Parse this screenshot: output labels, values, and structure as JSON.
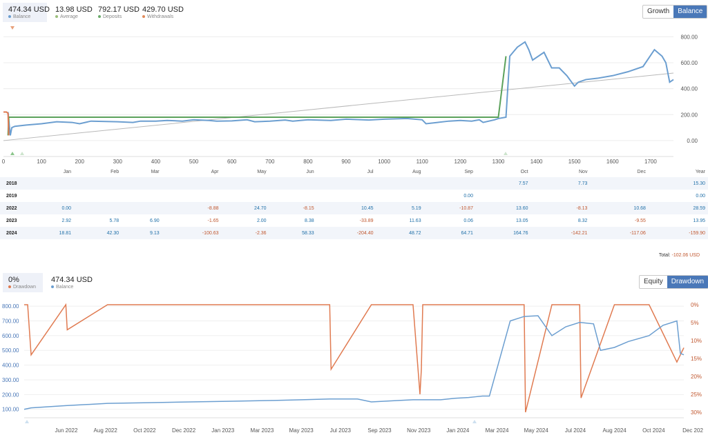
{
  "top_stats": [
    {
      "value": "474.34 USD",
      "label": "Balance",
      "color": "#6b9ed0"
    },
    {
      "value": "13.98 USD",
      "label": "Average",
      "color": "#9bbf7a"
    },
    {
      "value": "792.17 USD",
      "label": "Deposits",
      "color": "#6aaa6a"
    },
    {
      "value": "429.70 USD",
      "label": "Withdrawals",
      "color": "#e08a5a"
    }
  ],
  "top_toggle": {
    "growth": "Growth",
    "balance": "Balance"
  },
  "colors": {
    "balance": "#6b9ed0",
    "deposit": "#5aa15a",
    "withdrawal": "#e07a50",
    "trend": "#b8b8b8",
    "drawdown": "#e07a50",
    "accent": "#4a78b8"
  },
  "chart_data": [
    {
      "type": "line",
      "x_ticks": [
        "0",
        "100",
        "200",
        "300",
        "400",
        "500",
        "600",
        "700",
        "800",
        "900",
        "1000",
        "1100",
        "1200",
        "1300",
        "1400",
        "1500",
        "1600",
        "1700"
      ],
      "y_ticks": [
        "800.00",
        "600.00",
        "400.00",
        "200.00",
        "0.00"
      ],
      "xlim": [
        0,
        1760
      ],
      "ylim": [
        -80,
        860
      ],
      "series": [
        {
          "name": "Balance",
          "x": [
            12,
            18,
            22,
            30,
            60,
            100,
            140,
            180,
            200,
            230,
            260,
            300,
            340,
            360,
            400,
            430,
            470,
            500,
            540,
            560,
            600,
            640,
            660,
            700,
            740,
            760,
            800,
            860,
            900,
            960,
            1000,
            1060,
            1100,
            1110,
            1140,
            1170,
            1200,
            1230,
            1250,
            1260,
            1290,
            1300,
            1320,
            1330,
            1350,
            1370,
            1380,
            1390,
            1420,
            1440,
            1460,
            1480,
            1500,
            1510,
            1530,
            1560,
            1600,
            1640,
            1680,
            1710,
            1730,
            1740,
            1750,
            1760
          ],
          "y": [
            220,
            40,
            100,
            110,
            120,
            130,
            145,
            140,
            130,
            150,
            148,
            145,
            140,
            150,
            150,
            155,
            150,
            160,
            155,
            150,
            152,
            160,
            145,
            150,
            158,
            150,
            160,
            155,
            165,
            158,
            165,
            170,
            160,
            130,
            140,
            150,
            155,
            150,
            160,
            140,
            160,
            170,
            180,
            650,
            720,
            760,
            700,
            620,
            680,
            560,
            560,
            500,
            420,
            450,
            470,
            480,
            500,
            530,
            570,
            700,
            650,
            600,
            450,
            470
          ]
        },
        {
          "name": "Deposits",
          "x": [
            12,
            14,
            1300,
            1320
          ],
          "y": [
            40,
            180,
            180,
            650
          ]
        },
        {
          "name": "Withdrawals",
          "x": [
            0,
            8,
            12,
            14
          ],
          "y": [
            220,
            220,
            210,
            40
          ]
        },
        {
          "name": "Trend",
          "x": [
            0,
            1760
          ],
          "y": [
            0,
            520
          ]
        }
      ]
    },
    {
      "type": "table",
      "columns": [
        "",
        "Jan",
        "Feb",
        "Mar",
        "Apr",
        "May",
        "Jun",
        "Jul",
        "Aug",
        "Sep",
        "Oct",
        "Nov",
        "Dec",
        "Year"
      ],
      "rows": [
        [
          "2018",
          "",
          "",
          "",
          "",
          "",
          "",
          "",
          "",
          "",
          "7.57",
          "7.73",
          "",
          "15.30"
        ],
        [
          "2019",
          "",
          "",
          "",
          "",
          "",
          "",
          "",
          "",
          "0.00",
          "",
          "",
          "",
          "0.00"
        ],
        [
          "2022",
          "0.00",
          "",
          "",
          "-8.88",
          "24.70",
          "-8.15",
          "10.45",
          "5.19",
          "-10.87",
          "13.60",
          "-8.13",
          "10.68",
          "28.59"
        ],
        [
          "2023",
          "2.92",
          "5.78",
          "6.90",
          "-1.65",
          "2.00",
          "8.38",
          "-33.89",
          "11.63",
          "0.06",
          "13.05",
          "8.32",
          "-9.55",
          "13.95"
        ],
        [
          "2024",
          "18.81",
          "42.30",
          "9.13",
          "-100.63",
          "-2.36",
          "58.33",
          "-204.40",
          "48.72",
          "64.71",
          "164.76",
          "-142.21",
          "-117.06",
          "-159.90"
        ]
      ],
      "total_label": "Total:",
      "total_value": "-102.06 USD"
    },
    {
      "type": "line",
      "x_ticks": [
        "Jun 2022",
        "Aug 2022",
        "Oct 2022",
        "Dec 2022",
        "Jan 2023",
        "Mar 2023",
        "May 2023",
        "Jul 2023",
        "Sep 2023",
        "Nov 2023",
        "Jan 2024",
        "Mar 2024",
        "May 2024",
        "Jul 2024",
        "Aug 2024",
        "Oct 2024",
        "Dec 202"
      ],
      "y_ticks_left": [
        "800.00",
        "700.00",
        "600.00",
        "500.00",
        "400.00",
        "300.00",
        "200.00",
        "100.00"
      ],
      "y_ticks_right": [
        "0%",
        "5%",
        "10%",
        "15%",
        "20%",
        "25%",
        "30%"
      ],
      "ylim_left": [
        80,
        810
      ],
      "ylim_right": [
        0,
        30
      ],
      "series": [
        {
          "name": "Balance",
          "x": [
            0,
            10,
            60,
            120,
            180,
            240,
            300,
            360,
            400,
            440,
            480,
            500,
            540,
            560,
            600,
            620,
            640,
            650,
            660,
            670,
            700,
            720,
            740,
            760,
            780,
            800,
            820,
            830,
            850,
            870,
            900,
            920,
            940,
            945,
            950
          ],
          "y": [
            100,
            110,
            125,
            140,
            145,
            150,
            155,
            160,
            165,
            170,
            170,
            150,
            160,
            165,
            165,
            175,
            180,
            185,
            190,
            190,
            700,
            730,
            735,
            600,
            660,
            690,
            680,
            500,
            520,
            560,
            600,
            670,
            700,
            480,
            470
          ]
        },
        {
          "name": "Drawdown",
          "x": [
            0,
            5,
            10,
            60,
            62,
            120,
            180,
            240,
            300,
            360,
            420,
            440,
            442,
            500,
            560,
            570,
            572,
            574,
            600,
            650,
            700,
            720,
            722,
            760,
            800,
            802,
            850,
            900,
            940,
            950
          ],
          "y": [
            0,
            0,
            14,
            0,
            7,
            0,
            0,
            0,
            0,
            0,
            0,
            0,
            18,
            0,
            0,
            25,
            18,
            0,
            0,
            0,
            0,
            0,
            30,
            0,
            0,
            26,
            0,
            0,
            16,
            12
          ]
        }
      ]
    }
  ],
  "bottom_stats": [
    {
      "value": "0%",
      "label": "Drawdown",
      "color": "#e07a50"
    },
    {
      "value": "474.34 USD",
      "label": "Balance",
      "color": "#6b9ed0"
    }
  ],
  "bottom_toggle": {
    "equity": "Equity",
    "drawdown": "Drawdown"
  }
}
